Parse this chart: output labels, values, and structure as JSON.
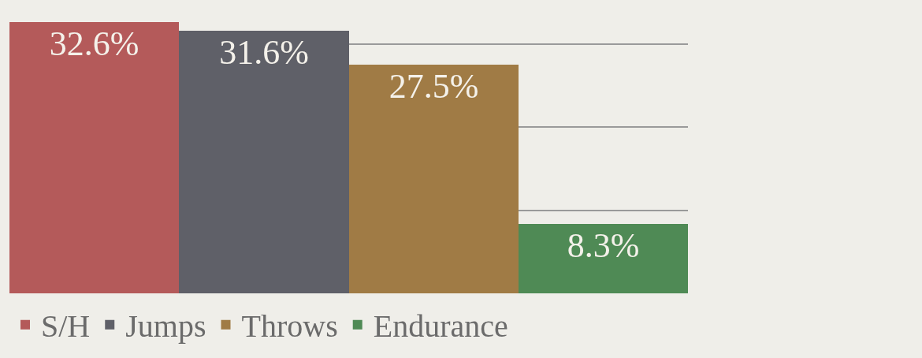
{
  "chart_data": {
    "type": "bar",
    "categories": [
      null
    ],
    "series": [
      {
        "name": "S/H",
        "color": "#b45a5a",
        "values": [
          32.6
        ],
        "value_labels": [
          "32.6%"
        ]
      },
      {
        "name": "Jumps",
        "color": "#5f6068",
        "values": [
          31.6
        ],
        "value_labels": [
          "31.6%"
        ]
      },
      {
        "name": "Throws",
        "color": "#a07b45",
        "values": [
          27.5
        ],
        "value_labels": [
          "27.5%"
        ]
      },
      {
        "name": "Endurance",
        "color": "#4f8a55",
        "values": [
          8.3
        ],
        "value_labels": [
          "8.3%"
        ]
      }
    ],
    "grid": "y",
    "tick_labels": false,
    "legend": "bottom"
  }
}
